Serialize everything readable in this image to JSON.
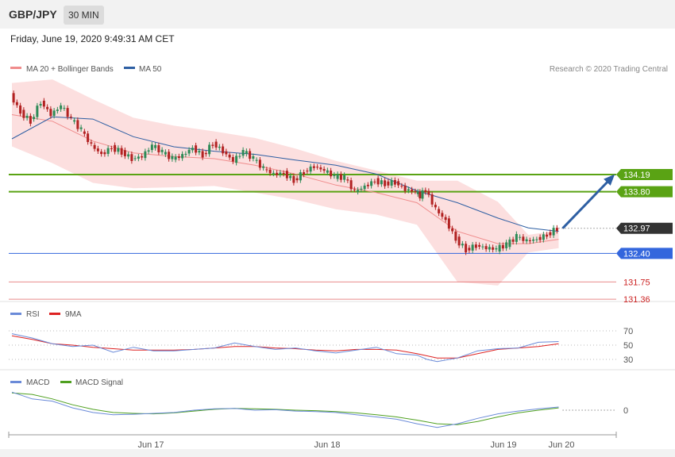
{
  "header": {
    "pair": "GBP/JPY",
    "timeframe": "30 MIN",
    "datetime": "Friday, June 19, 2020 9:49:31 AM CET"
  },
  "colors": {
    "ma20": "#f08c8c",
    "ma50": "#2e5fa3",
    "band_fill": "#fbd9d9",
    "resistance": "#5aa314",
    "support": "#3366dd",
    "extra_line": "#e05a5a",
    "price_tag": "#333333",
    "rsi": "#6a8ad8",
    "rsi_ma": "#dd2222",
    "macd": "#6a8ad8",
    "macd_signal": "#4fa020",
    "candle_up": "#2e8b57",
    "candle_down": "#b22222",
    "arrow": "#2e5fa3"
  },
  "legend": {
    "ma20": "MA 20 + Bollinger Bands",
    "ma50": "MA 50",
    "credit": "Research © 2020 Trading Central"
  },
  "rsi_legend": {
    "rsi": "RSI",
    "ma": "9MA"
  },
  "macd_legend": {
    "macd": "MACD",
    "signal": "MACD Signal"
  },
  "chart_data": [
    {
      "type": "line",
      "title": "GBP/JPY",
      "x_tick_labels": [
        "Jun 17",
        "Jun 18",
        "Jun 19",
        "Jun 20"
      ],
      "levels": [
        {
          "value": 134.19,
          "label": "134.19",
          "kind": "resistance"
        },
        {
          "value": 133.8,
          "label": "133.80",
          "kind": "resistance"
        },
        {
          "value": 132.97,
          "label": "132.97",
          "kind": "last"
        },
        {
          "value": 132.4,
          "label": "132.40",
          "kind": "support"
        },
        {
          "value": 131.75,
          "label": "131.75",
          "kind": "extra"
        },
        {
          "value": 131.36,
          "label": "131.36",
          "kind": "extra"
        }
      ],
      "series": [
        {
          "name": "MA 20 + Bollinger Bands",
          "x": [
            0,
            20,
            40,
            60,
            80,
            100,
            120,
            140,
            160,
            180,
            200,
            220,
            240,
            255,
            270
          ],
          "values": [
            135.55,
            135.4,
            134.95,
            134.68,
            134.6,
            134.55,
            134.4,
            134.2,
            133.95,
            133.78,
            133.55,
            132.9,
            132.62,
            132.62,
            132.72
          ]
        },
        {
          "name": "MA 50",
          "x": [
            0,
            20,
            40,
            60,
            80,
            100,
            120,
            140,
            160,
            180,
            200,
            220,
            240,
            255,
            270
          ],
          "values": [
            135.0,
            135.5,
            135.45,
            135.05,
            134.82,
            134.72,
            134.65,
            134.52,
            134.4,
            134.2,
            133.82,
            133.55,
            133.2,
            132.98,
            132.9
          ]
        },
        {
          "name": "Price",
          "x": [
            0,
            5,
            10,
            15,
            20,
            25,
            30,
            35,
            40,
            45,
            50,
            55,
            60,
            65,
            70,
            75,
            80,
            85,
            90,
            95,
            100,
            105,
            110,
            115,
            120,
            125,
            130,
            135,
            140,
            145,
            150,
            155,
            160,
            165,
            170,
            175,
            180,
            185,
            190,
            195,
            200,
            202,
            205,
            210,
            215,
            220,
            225,
            230,
            235,
            240,
            245,
            250,
            255,
            260,
            265,
            270
          ],
          "values": [
            136.0,
            135.6,
            135.4,
            135.85,
            135.55,
            135.75,
            135.45,
            135.2,
            134.85,
            134.65,
            134.8,
            134.7,
            134.55,
            134.6,
            134.85,
            134.7,
            134.55,
            134.62,
            134.8,
            134.62,
            134.9,
            134.72,
            134.5,
            134.72,
            134.55,
            134.32,
            134.2,
            134.22,
            134.05,
            134.25,
            134.38,
            134.28,
            134.15,
            134.12,
            133.8,
            133.92,
            134.05,
            133.98,
            134.02,
            133.85,
            133.8,
            133.7,
            133.85,
            133.4,
            133.15,
            132.72,
            132.48,
            132.58,
            132.52,
            132.5,
            132.6,
            132.78,
            132.68,
            132.72,
            132.82,
            132.97
          ]
        }
      ]
    },
    {
      "type": "line",
      "title": "RSI",
      "y_ticks": [
        70,
        50,
        30
      ],
      "series": [
        {
          "name": "RSI",
          "x": [
            0,
            10,
            20,
            30,
            40,
            50,
            60,
            70,
            80,
            90,
            100,
            110,
            120,
            130,
            140,
            150,
            160,
            170,
            180,
            190,
            200,
            205,
            210,
            220,
            230,
            240,
            250,
            260,
            270
          ],
          "values": [
            66,
            60,
            52,
            48,
            50,
            40,
            47,
            42,
            42,
            44,
            46,
            53,
            48,
            44,
            46,
            42,
            39,
            43,
            47,
            38,
            36,
            30,
            27,
            32,
            42,
            45,
            46,
            54,
            55
          ]
        },
        {
          "name": "9MA",
          "x": [
            0,
            10,
            20,
            30,
            40,
            50,
            60,
            70,
            80,
            90,
            100,
            110,
            120,
            130,
            140,
            150,
            160,
            170,
            180,
            190,
            200,
            210,
            220,
            230,
            240,
            250,
            260,
            270
          ],
          "values": [
            63,
            58,
            52,
            50,
            47,
            45,
            43,
            43,
            43,
            44,
            46,
            48,
            48,
            46,
            45,
            43,
            42,
            44,
            44,
            43,
            38,
            32,
            32,
            38,
            44,
            46,
            48,
            52
          ]
        }
      ]
    },
    {
      "type": "line",
      "title": "MACD",
      "y_ticks": [
        0
      ],
      "series": [
        {
          "name": "MACD",
          "x": [
            0,
            10,
            20,
            30,
            40,
            50,
            60,
            70,
            80,
            90,
            100,
            110,
            120,
            130,
            140,
            150,
            160,
            170,
            180,
            190,
            200,
            210,
            220,
            230,
            240,
            250,
            260,
            270
          ],
          "values": [
            0.4,
            0.25,
            0.2,
            0.05,
            -0.05,
            -0.1,
            -0.09,
            -0.07,
            -0.05,
            0.0,
            0.03,
            0.04,
            0.0,
            0.01,
            -0.02,
            -0.03,
            -0.05,
            -0.1,
            -0.15,
            -0.2,
            -0.3,
            -0.38,
            -0.3,
            -0.18,
            -0.08,
            -0.02,
            0.03,
            0.07
          ]
        },
        {
          "name": "MACD Signal",
          "x": [
            0,
            10,
            20,
            30,
            40,
            50,
            60,
            70,
            80,
            90,
            100,
            110,
            120,
            130,
            140,
            150,
            160,
            170,
            180,
            190,
            200,
            210,
            220,
            230,
            240,
            250,
            260,
            270
          ],
          "values": [
            0.38,
            0.35,
            0.25,
            0.12,
            0.02,
            -0.05,
            -0.07,
            -0.08,
            -0.06,
            -0.02,
            0.02,
            0.04,
            0.03,
            0.02,
            0.0,
            -0.01,
            -0.03,
            -0.06,
            -0.1,
            -0.15,
            -0.22,
            -0.3,
            -0.32,
            -0.25,
            -0.15,
            -0.06,
            0.0,
            0.05
          ]
        }
      ]
    }
  ]
}
